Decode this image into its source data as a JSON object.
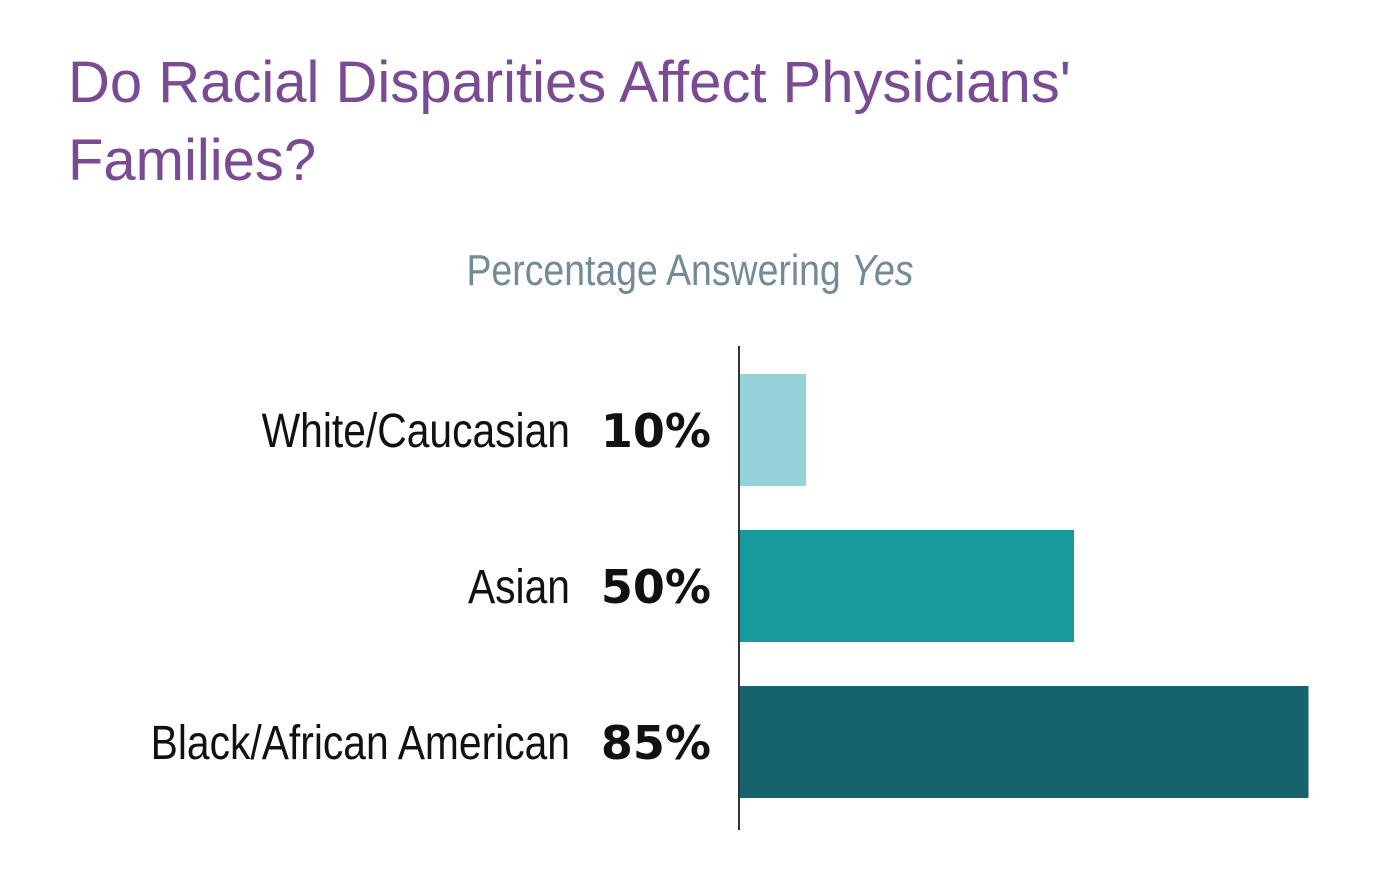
{
  "chart_data": {
    "type": "bar",
    "orientation": "horizontal",
    "title": "Do Racial Disparities Affect Physicians' Families?",
    "subtitle": "Percentage Answering",
    "subtitle_emphasis": "Yes",
    "categories": [
      "White/Caucasian",
      "Asian",
      "Black/African American"
    ],
    "values": [
      10,
      50,
      85
    ],
    "value_labels": [
      "10%",
      "50%",
      "85%"
    ],
    "colors": [
      "#93d2d6",
      "#189a9c",
      "#17636b"
    ],
    "xlim": [
      0,
      85
    ],
    "grid": false,
    "legend": "none"
  }
}
